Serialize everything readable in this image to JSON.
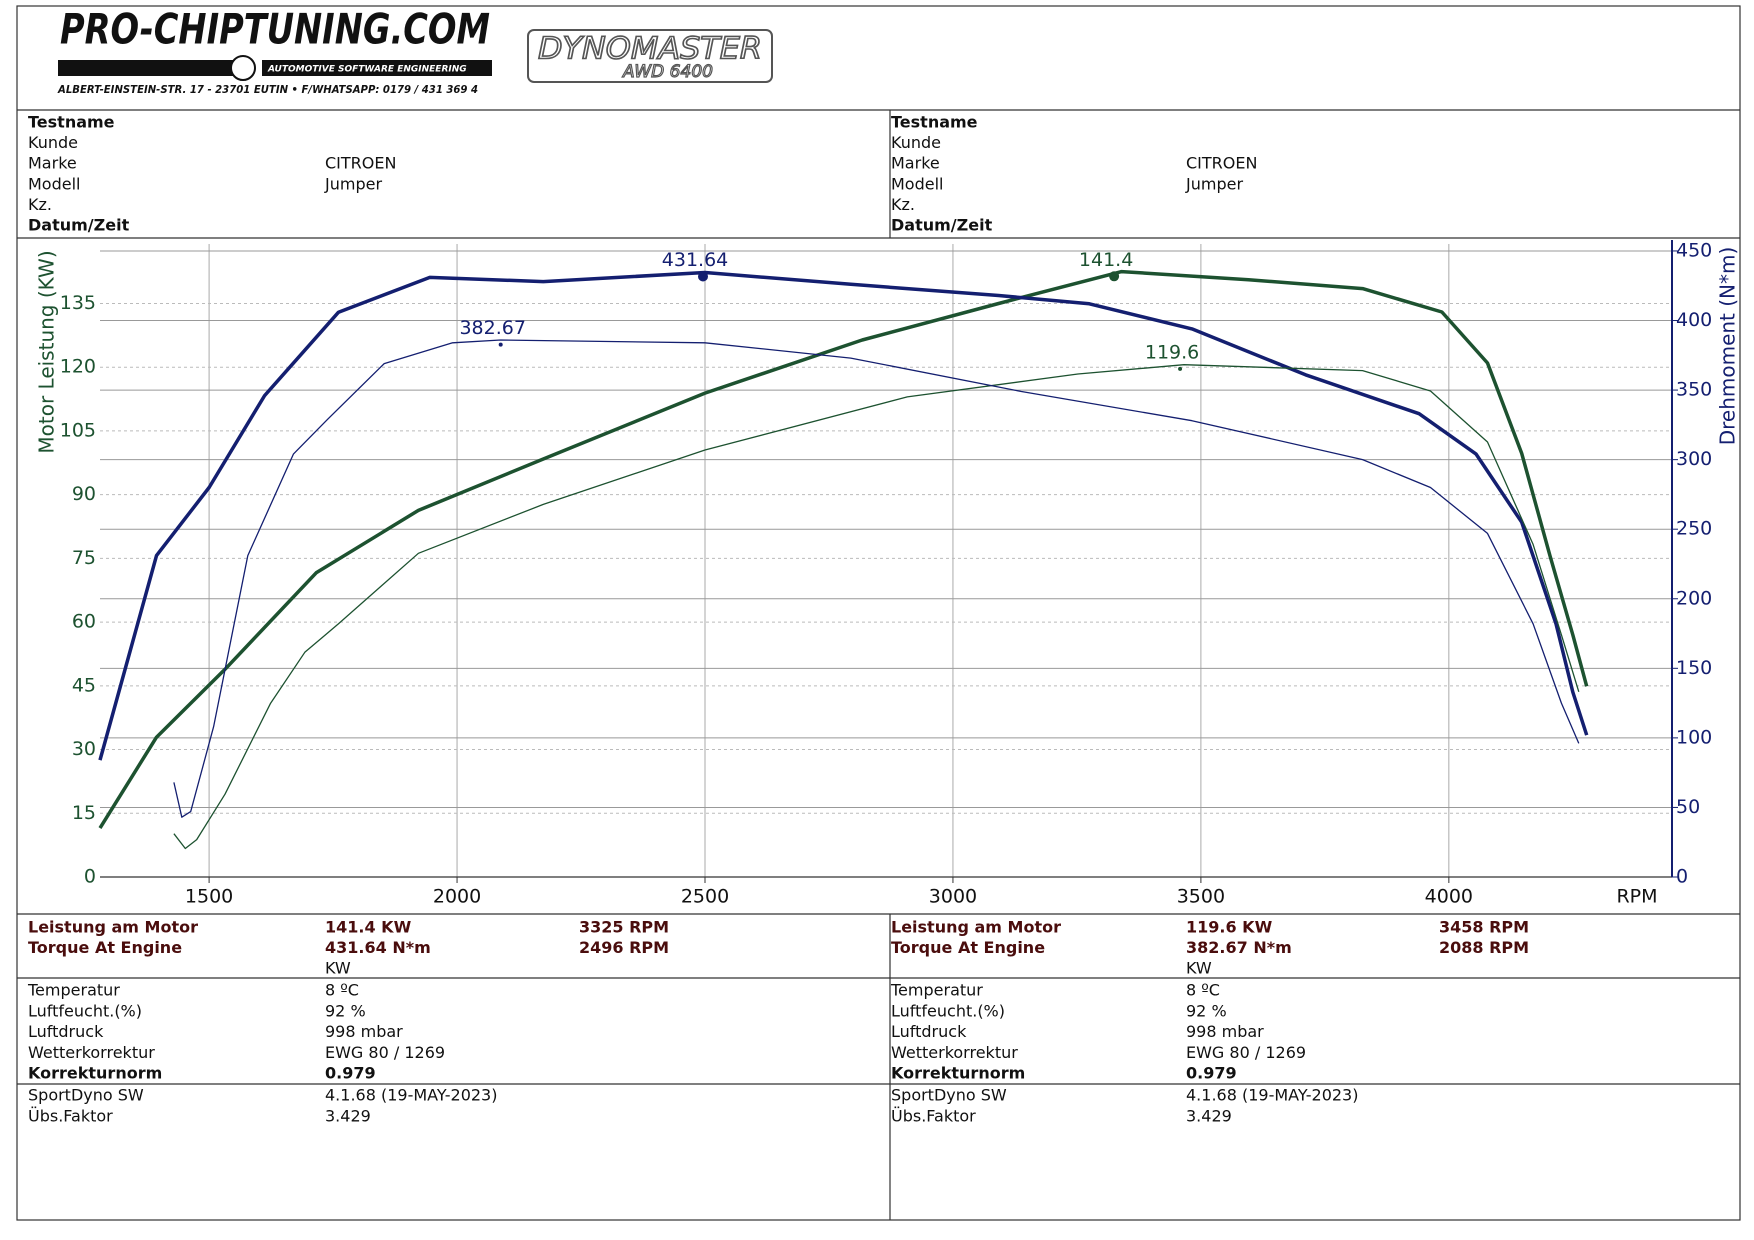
{
  "header": {
    "logo": "PRO-CHIPTUNING.COM",
    "tagline": "AUTOMOTIVE SOFTWARE ENGINEERING",
    "address": "ALBERT-EINSTEIN-STR. 17 - 23701 EUTIN • F/WHATSAPP: 0179 / 431 369 4",
    "dyno": "DYNOMASTER",
    "dyno_model": "AWD 6400"
  },
  "info": [
    [
      {
        "label": "Testname",
        "bold": true
      },
      {
        "label": "Kunde"
      },
      {
        "label": "Marke",
        "value": "CITROEN"
      },
      {
        "label": "Modell",
        "value": "Jumper"
      },
      {
        "label": "Kz."
      },
      {
        "label": "Datum/Zeit",
        "bold": true
      }
    ],
    [
      {
        "label": "Testname",
        "bold": true
      },
      {
        "label": "Kunde"
      },
      {
        "label": "Marke",
        "value": "CITROEN"
      },
      {
        "label": "Modell",
        "value": "Jumper"
      },
      {
        "label": "Kz."
      },
      {
        "label": "Datum/Zeit",
        "bold": true
      }
    ]
  ],
  "chart_data": {
    "type": "line",
    "y_label": "Motor Leistung (KW)",
    "y2_label": "Drehmoment (N*m)",
    "x_label": "RPM",
    "xlim": [
      1280,
      4450
    ],
    "xticks": [
      1500,
      2000,
      2500,
      3000,
      3500,
      4000
    ],
    "ylim": [
      0,
      149
    ],
    "yticks": [
      0,
      15,
      30,
      45,
      60,
      75,
      90,
      105,
      120,
      135
    ],
    "y2lim": [
      0,
      455
    ],
    "y2ticks": [
      0,
      50,
      100,
      150,
      200,
      250,
      300,
      350,
      400,
      450
    ],
    "grid": true,
    "series": [
      {
        "color": "#1d5230",
        "line_width": 3.5,
        "x": [
          1280,
          1394,
          1532,
          1716,
          1922,
          2174,
          2500,
          2817,
          3092,
          3340,
          3596,
          3826,
          3986,
          4078,
          4147,
          4204,
          4250,
          4278
        ],
        "values": [
          11.5,
          32.9,
          48.9,
          71.6,
          86.3,
          98.4,
          113.9,
          126.4,
          135,
          142.5,
          140.6,
          138.5,
          133,
          121,
          99.7,
          75.6,
          57,
          44.9
        ]
      },
      {
        "color": "#141f70",
        "line_width": 3.5,
        "axis": "y2",
        "x": [
          1280,
          1394,
          1500,
          1612,
          1761,
          1945,
          2174,
          2500,
          2794,
          3092,
          3275,
          3482,
          3711,
          3940,
          4055,
          4147,
          4216,
          4250,
          4278
        ],
        "values": [
          84,
          231,
          280,
          346,
          406,
          431,
          428,
          434.5,
          426,
          418,
          412,
          394,
          361,
          333,
          304,
          255,
          182,
          133,
          102
        ]
      },
      {
        "color": "#1d5230",
        "line_width": 1.3,
        "x": [
          1429,
          1452,
          1475,
          1532,
          1624,
          1693,
          1761,
          1922,
          2174,
          2500,
          2908,
          3252,
          3466,
          3826,
          3963,
          4078,
          4170,
          4227,
          4262
        ],
        "values": [
          10.2,
          6.7,
          8.8,
          19.5,
          40.9,
          52.9,
          59.6,
          76.2,
          87.7,
          100.5,
          113,
          118.4,
          120.6,
          119.2,
          114.4,
          102.4,
          78.3,
          57,
          43.6
        ]
      },
      {
        "color": "#141f70",
        "line_width": 1.3,
        "axis": "y2",
        "x": [
          1429,
          1445,
          1463,
          1509,
          1578,
          1670,
          1739,
          1853,
          1991,
          2088,
          2500,
          2794,
          3138,
          3482,
          3826,
          3963,
          4078,
          4170,
          4227,
          4262
        ],
        "values": [
          68,
          43,
          47,
          108,
          231,
          304,
          329,
          369,
          384,
          386,
          384,
          373,
          349,
          328,
          300,
          280,
          247,
          182,
          125,
          96
        ]
      }
    ],
    "annotations": [
      {
        "series": 1,
        "x": 2496,
        "value": 431.64,
        "axis": "y2",
        "size": 5
      },
      {
        "series": 0,
        "x": 3325,
        "value": 141.4,
        "size": 5
      },
      {
        "series": 3,
        "x": 2088,
        "value": 382.67,
        "axis": "y2",
        "size": 2
      },
      {
        "series": 2,
        "x": 3458,
        "value": 119.6,
        "size": 2
      }
    ]
  },
  "results": [
    {
      "rows": [
        {
          "label": "Leistung am Motor",
          "value": "141.4 KW",
          "rpm": "3325 RPM"
        },
        {
          "label": "Torque At Engine",
          "value": "431.64 N*m",
          "rpm": "2496 RPM"
        }
      ],
      "unit": "KW"
    },
    {
      "rows": [
        {
          "label": "Leistung am Motor",
          "value": "119.6 KW",
          "rpm": "3458 RPM"
        },
        {
          "label": "Torque At Engine",
          "value": "382.67 N*m",
          "rpm": "2088 RPM"
        }
      ],
      "unit": "KW"
    }
  ],
  "conditions": [
    [
      {
        "label": "Temperatur",
        "value": "8 ºC"
      },
      {
        "label": "Luftfeucht.(%)",
        "value": "92 %"
      },
      {
        "label": "Luftdruck",
        "value": "998 mbar"
      },
      {
        "label": "Wetterkorrektur",
        "value": "EWG 80 / 1269"
      },
      {
        "label": "Korrekturnorm",
        "value": "0.979",
        "bold": true
      }
    ],
    [
      {
        "label": "Temperatur",
        "value": "8 ºC"
      },
      {
        "label": "Luftfeucht.(%)",
        "value": "92 %"
      },
      {
        "label": "Luftdruck",
        "value": "998 mbar"
      },
      {
        "label": "Wetterkorrektur",
        "value": "EWG 80 / 1269"
      },
      {
        "label": "Korrekturnorm",
        "value": "0.979",
        "bold": true
      }
    ]
  ],
  "software": [
    [
      {
        "label": "SportDyno SW",
        "value": "4.1.68 (19-MAY-2023)"
      },
      {
        "label": "Übs.Faktor",
        "value": "3.429"
      }
    ],
    [
      {
        "label": "SportDyno SW",
        "value": "4.1.68 (19-MAY-2023)"
      },
      {
        "label": "Übs.Faktor",
        "value": "3.429"
      }
    ]
  ]
}
